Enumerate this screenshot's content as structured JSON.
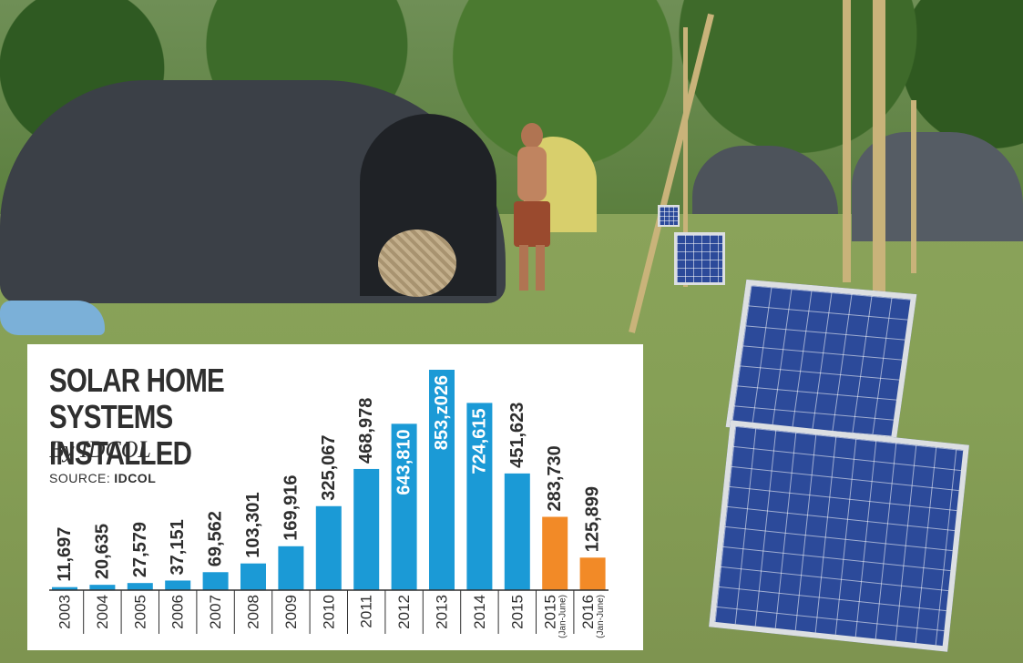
{
  "infographic": {
    "title": "SOLAR HOME SYSTEMS INSTALLED",
    "subtitle": "By IDCOL",
    "source_label": "SOURCE:",
    "source_value": "IDCOL"
  },
  "chart_data": {
    "type": "bar",
    "title": "SOLAR HOME SYSTEMS INSTALLED",
    "subtitle": "By IDCOL",
    "xlabel": "",
    "ylabel": "",
    "ylim": [
      0,
      853026
    ],
    "grid": false,
    "legend": "none",
    "categories": [
      "2003",
      "2004",
      "2005",
      "2006",
      "2007",
      "2008",
      "2009",
      "2010",
      "2011",
      "2012",
      "2013",
      "2014",
      "2015",
      "2015",
      "2016"
    ],
    "category_notes": [
      "",
      "",
      "",
      "",
      "",
      "",
      "",
      "",
      "",
      "",
      "",
      "",
      "",
      "(Jan-June)",
      "(Jan-June)"
    ],
    "values": [
      11697,
      20635,
      27579,
      37151,
      69562,
      103301,
      169916,
      325067,
      468978,
      643810,
      853026,
      724615,
      451623,
      283730,
      125899
    ],
    "value_labels": [
      "11,697",
      "20,635",
      "27,579",
      "37,151",
      "69,562",
      "103,301",
      "169,916",
      "325,067",
      "468,978",
      "643,810",
      "853,z026",
      "724,615",
      "451,623",
      "283,730",
      "125,899"
    ],
    "bar_colors": [
      "#1b9ad6",
      "#1b9ad6",
      "#1b9ad6",
      "#1b9ad6",
      "#1b9ad6",
      "#1b9ad6",
      "#1b9ad6",
      "#1b9ad6",
      "#1b9ad6",
      "#1b9ad6",
      "#1b9ad6",
      "#1b9ad6",
      "#1b9ad6",
      "#f28a27",
      "#f28a27"
    ]
  },
  "colors": {
    "bar_full_year": "#1b9ad6",
    "bar_half_year": "#f28a27",
    "text": "#2f2f2f"
  }
}
